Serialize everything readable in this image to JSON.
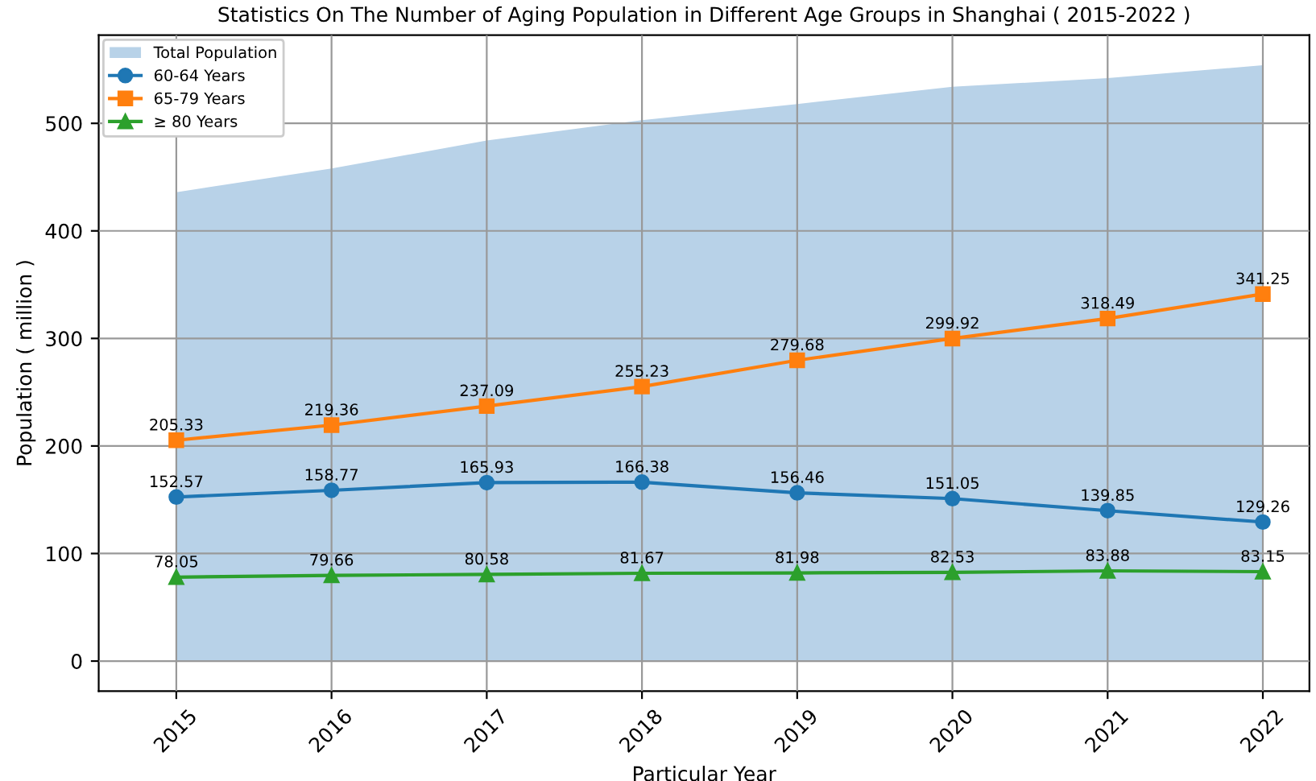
{
  "chart_data": {
    "type": "line",
    "title": "Statistics On The Number of Aging Population in Different Age Groups in Shanghai ( 2015-2022 )",
    "xlabel": "Particular Year",
    "ylabel": "Population ( million )",
    "categories": [
      "2015",
      "2016",
      "2017",
      "2018",
      "2019",
      "2020",
      "2021",
      "2022"
    ],
    "series": [
      {
        "name": "Total Population",
        "type": "area",
        "color": "#b8d2e8",
        "values": [
          436,
          458,
          484,
          503,
          518,
          534,
          542,
          554
        ]
      },
      {
        "name": "60-64 Years",
        "marker": "circle",
        "color": "#1f77b4",
        "data_labels": true,
        "values": [
          152.57,
          158.77,
          165.93,
          166.38,
          156.46,
          151.05,
          139.85,
          129.26
        ]
      },
      {
        "name": "65-79 Years",
        "marker": "square",
        "color": "#ff7f0e",
        "data_labels": true,
        "values": [
          205.33,
          219.36,
          237.09,
          255.23,
          279.68,
          299.92,
          318.49,
          341.25
        ]
      },
      {
        "name": "≥ 80 Years",
        "marker": "triangle",
        "color": "#2ca02c",
        "data_labels": true,
        "values": [
          78.05,
          79.66,
          80.58,
          81.67,
          81.98,
          82.53,
          83.88,
          83.15
        ]
      }
    ],
    "ylim": [
      -28,
      582
    ],
    "yticks": [
      0,
      100,
      200,
      300,
      400,
      500
    ],
    "grid": true,
    "legend": "top left",
    "line_style": "solid"
  }
}
